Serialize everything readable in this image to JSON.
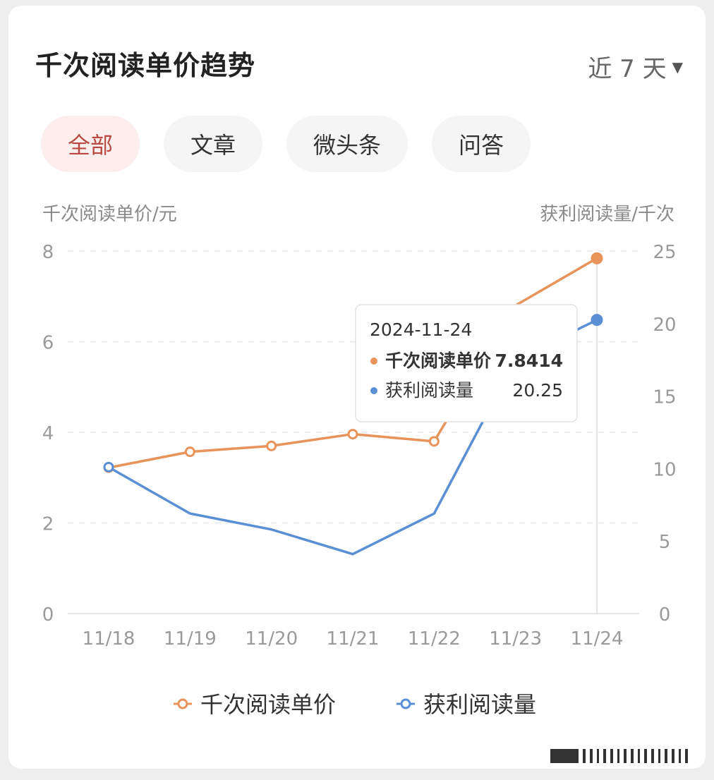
{
  "header": {
    "title": "千次阅读单价趋势",
    "range_label": "近 7 天"
  },
  "tabs": [
    {
      "label": "全部",
      "active": true
    },
    {
      "label": "文章",
      "active": false
    },
    {
      "label": "微头条",
      "active": false
    },
    {
      "label": "问答",
      "active": false
    }
  ],
  "colors": {
    "orange": "#e8935a",
    "blue": "#5a8fd6",
    "active_tab_text": "#b84a43"
  },
  "chart_data": {
    "type": "line",
    "categories": [
      "11/18",
      "11/19",
      "11/20",
      "11/21",
      "11/22",
      "11/23",
      "11/24"
    ],
    "y_left": {
      "label": "千次阅读单价/元",
      "range": [
        0,
        8
      ],
      "ticks": [
        "0",
        "2",
        "4",
        "6",
        "8"
      ]
    },
    "y_right": {
      "label": "获利阅读量/千次",
      "range": [
        0,
        25
      ],
      "ticks": [
        "0",
        "5",
        "10",
        "15",
        "20",
        "25"
      ]
    },
    "grid": true,
    "series": [
      {
        "name": "千次阅读单价",
        "axis": "left",
        "values": [
          3.22,
          3.57,
          3.7,
          3.96,
          3.8,
          6.8,
          7.8414
        ],
        "color": "#e8935a"
      },
      {
        "name": "获利阅读量",
        "axis": "right",
        "values": [
          10.1,
          6.9,
          5.8,
          4.1,
          6.9,
          17.5,
          20.25
        ],
        "color": "#5a8fd6"
      }
    ],
    "tooltip": {
      "date": "2024-11-24",
      "rows": [
        {
          "name": "千次阅读单价",
          "value": "7.8414",
          "bold": true
        },
        {
          "name": "获利阅读量",
          "value": "20.25",
          "bold": false
        }
      ]
    },
    "legend_placement": "bottom"
  }
}
